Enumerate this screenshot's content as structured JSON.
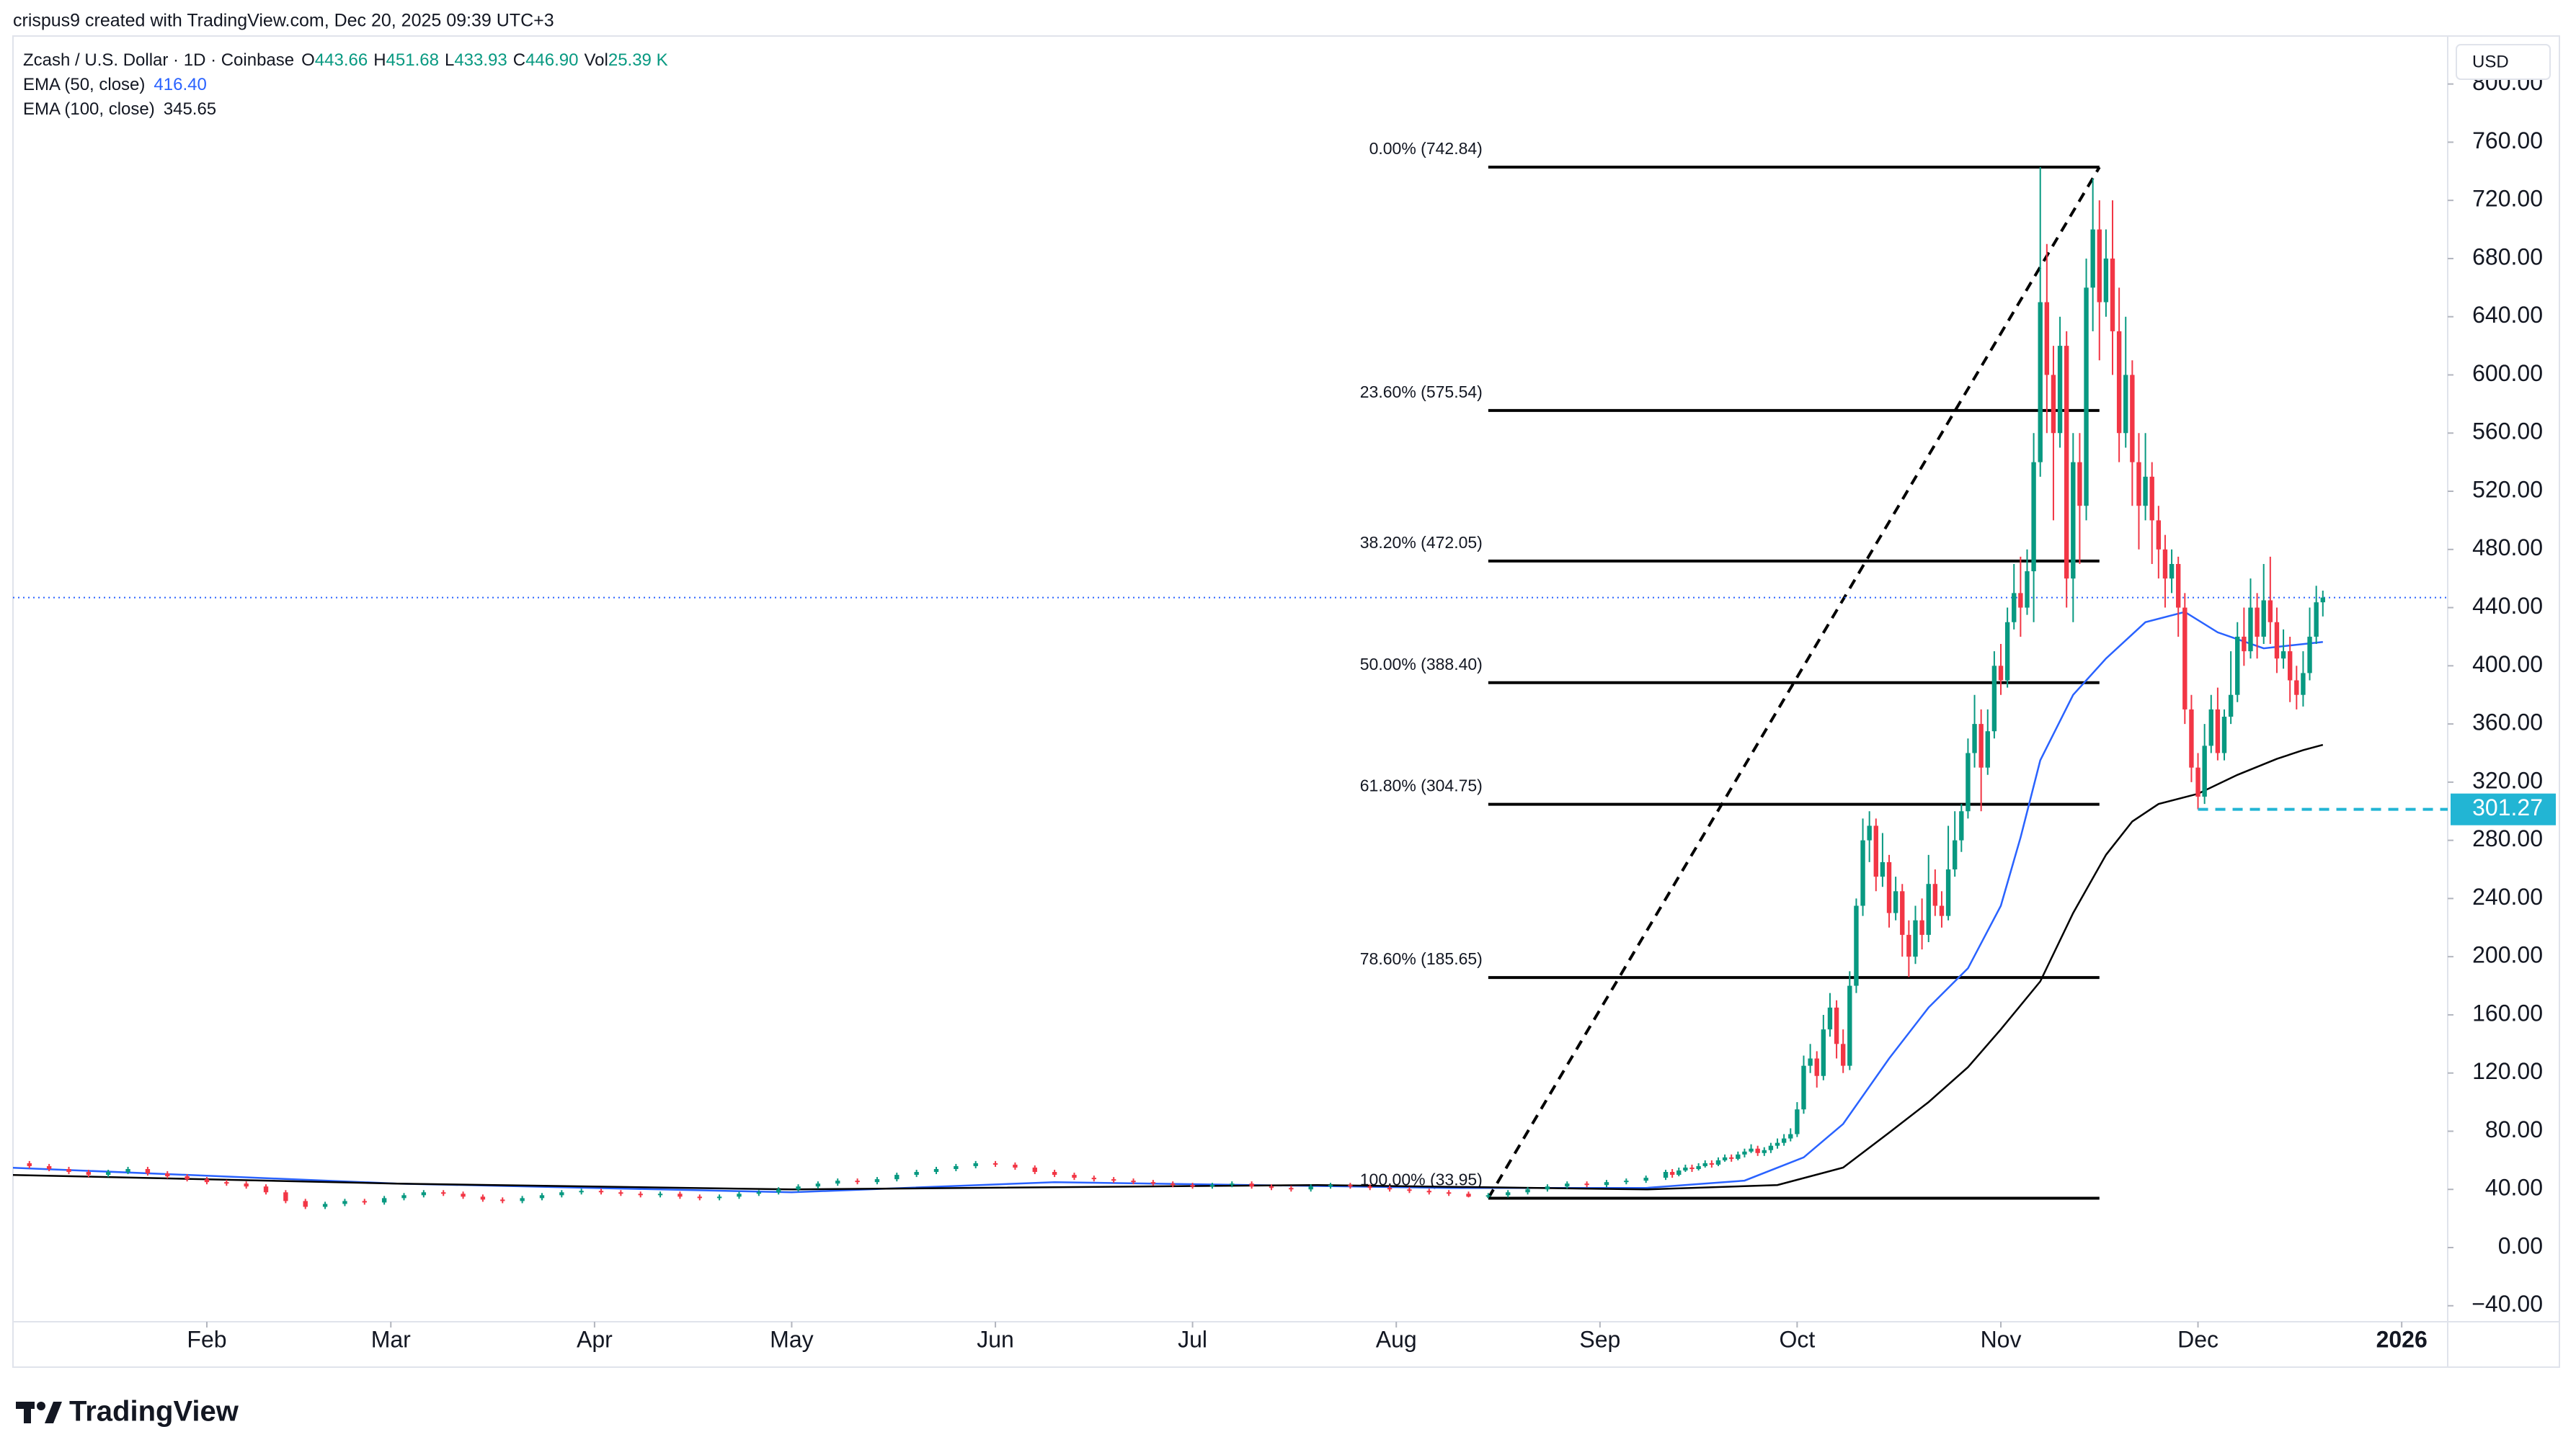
{
  "header": {
    "credit": "crispus9 created with TradingView.com, Dec 20, 2025 09:39 UTC+3"
  },
  "footer": {
    "brand": "TradingView"
  },
  "chart_data": {
    "type": "candlestick",
    "legend": {
      "symbol": "Zcash / U.S. Dollar · 1D · Coinbase",
      "ohlc": [
        {
          "label": "O",
          "text": "443.66"
        },
        {
          "label": "H",
          "text": "451.68"
        },
        {
          "label": "L",
          "text": "433.93"
        },
        {
          "label": "C",
          "text": "446.90"
        },
        {
          "label": "Vol",
          "text": "25.39 K"
        }
      ]
    },
    "currency": "USD",
    "up_color": "#089981",
    "down_color": "#f23645",
    "x": [
      1,
      4,
      7,
      10,
      13,
      16,
      19,
      22,
      25,
      28,
      31,
      34,
      37,
      40,
      43,
      46,
      49,
      52,
      55,
      58,
      61,
      64,
      67,
      70,
      73,
      76,
      79,
      82,
      85,
      88,
      91,
      94,
      97,
      100,
      103,
      106,
      109,
      112,
      115,
      118,
      121,
      124,
      127,
      130,
      133,
      136,
      139,
      142,
      145,
      148,
      151,
      154,
      157,
      160,
      163,
      166,
      169,
      172,
      175,
      178,
      181,
      184,
      187,
      190,
      193,
      196,
      199,
      202,
      205,
      208,
      211,
      214,
      217,
      220,
      223,
      226,
      229,
      232,
      235,
      238,
      241,
      244,
      247,
      250,
      253,
      254,
      255,
      256,
      257,
      258,
      259,
      260,
      261,
      262,
      263,
      264,
      265,
      266,
      267,
      268,
      269,
      270,
      271,
      272,
      273,
      274,
      275,
      276,
      277,
      278,
      279,
      280,
      281,
      282,
      283,
      284,
      285,
      286,
      287,
      288,
      289,
      290,
      291,
      292,
      293,
      294,
      295,
      296,
      297,
      298,
      299,
      300,
      301,
      302,
      303,
      304,
      305,
      306,
      307,
      308,
      309,
      310,
      311,
      312,
      313,
      314,
      315,
      316,
      317,
      318,
      319,
      320,
      321,
      322,
      323,
      324,
      325,
      326,
      327,
      328,
      329,
      330,
      331,
      332,
      333,
      334,
      335,
      336,
      337,
      338,
      339,
      340,
      341,
      342,
      343,
      344,
      345,
      346,
      347,
      348,
      349,
      350,
      351,
      352,
      353
    ],
    "open": [
      60,
      58,
      56,
      54,
      52,
      50,
      52,
      54,
      51,
      49,
      47,
      45,
      44,
      42,
      38,
      32,
      28,
      30,
      32,
      31,
      34,
      36,
      38,
      37,
      35,
      33,
      32,
      34,
      36,
      38,
      39,
      38,
      37,
      36,
      37,
      35,
      34,
      35,
      37,
      38,
      40,
      42,
      44,
      46,
      45,
      47,
      50,
      52,
      54,
      56,
      58,
      57,
      55,
      52,
      50,
      48,
      47,
      46,
      45,
      44,
      43,
      42,
      43,
      44,
      42,
      41,
      40,
      42,
      43,
      42,
      41,
      40,
      39,
      38,
      37,
      35,
      36,
      38,
      40,
      42,
      44,
      43,
      45,
      46,
      48,
      52,
      50,
      53,
      55,
      54,
      56,
      58,
      57,
      60,
      62,
      61,
      64,
      66,
      68,
      65,
      67,
      70,
      72,
      75,
      78,
      95,
      125,
      130,
      118,
      150,
      165,
      140,
      125,
      180,
      235,
      280,
      290,
      255,
      265,
      230,
      245,
      215,
      200,
      225,
      215,
      250,
      235,
      228,
      260,
      280,
      300,
      340,
      360,
      330,
      355,
      400,
      390,
      430,
      450,
      440,
      465,
      540,
      650,
      600,
      560,
      620,
      460,
      540,
      510,
      660,
      700,
      650,
      680,
      630,
      560,
      600,
      540,
      510,
      530,
      500,
      480,
      460,
      470,
      440,
      370,
      330,
      310,
      345,
      370,
      340,
      365,
      380,
      420,
      410,
      440,
      420,
      445,
      430,
      405,
      410,
      390,
      380,
      395,
      420,
      443.66
    ],
    "high": [
      61.5,
      59.5,
      57.5,
      55.5,
      53.5,
      53.5,
      55.5,
      55.5,
      52.5,
      50.5,
      48.5,
      46.5,
      45.5,
      43.5,
      39.5,
      33.5,
      31.5,
      33.5,
      33.5,
      35.5,
      37.5,
      39.5,
      39.5,
      38.5,
      36.5,
      34.5,
      35.5,
      37.5,
      39.5,
      40.5,
      40.5,
      39.5,
      38.5,
      38.5,
      38.5,
      36.5,
      36.5,
      38.5,
      39.5,
      41.5,
      43.5,
      45.5,
      47.5,
      47.5,
      48.5,
      51.5,
      53.5,
      55.5,
      57.5,
      59.5,
      59.5,
      58.5,
      56.5,
      53.5,
      51.5,
      49.5,
      48.5,
      47.5,
      46.5,
      45.5,
      44.5,
      44.5,
      45.5,
      45.5,
      43.5,
      42.5,
      43.5,
      44.5,
      44.5,
      43.5,
      42.5,
      41.5,
      40.5,
      39.5,
      38.5,
      37.5,
      39.5,
      41.5,
      43.5,
      45.5,
      45.5,
      46.5,
      47.5,
      49.5,
      53.5,
      54,
      55,
      57,
      57,
      58,
      60,
      60,
      62,
      64,
      64,
      66,
      68,
      71,
      70,
      69,
      72,
      75,
      78,
      82,
      100,
      132,
      140,
      135,
      160,
      175,
      170,
      150,
      190,
      240,
      295,
      300,
      295,
      285,
      270,
      255,
      250,
      225,
      235,
      240,
      270,
      260,
      245,
      290,
      300,
      305,
      350,
      380,
      370,
      370,
      410,
      415,
      440,
      470,
      475,
      480,
      560,
      742.84,
      690,
      620,
      640,
      630,
      560,
      560,
      680,
      735,
      720,
      700,
      720,
      660,
      640,
      610,
      560,
      560,
      540,
      510,
      490,
      480,
      475,
      450,
      380,
      340,
      360,
      380,
      385,
      370,
      410,
      430,
      440,
      460,
      450,
      470,
      475,
      440,
      425,
      420,
      400,
      410,
      440,
      455,
      451.68
    ],
    "low": [
      56.5,
      54.5,
      52.5,
      50.5,
      48.5,
      48.5,
      50.5,
      49.5,
      47.5,
      45.5,
      43.5,
      42.5,
      40.5,
      36.5,
      30.5,
      26.5,
      26.5,
      28.5,
      29.5,
      29.5,
      32.5,
      34.5,
      35.5,
      33.5,
      31.5,
      30.5,
      30.5,
      32.5,
      34.5,
      36.5,
      36.5,
      35.5,
      34.5,
      34.5,
      33.5,
      32.5,
      32.5,
      33.5,
      35.5,
      36.5,
      38.5,
      40.5,
      42.5,
      43.5,
      43.5,
      45.5,
      48.5,
      50.5,
      52.5,
      54.5,
      55.5,
      53.5,
      50.5,
      48.5,
      46.5,
      45.5,
      44.5,
      43.5,
      42.5,
      41.5,
      40.5,
      40.5,
      41.5,
      40.5,
      39.5,
      38.5,
      38.5,
      40.5,
      40.5,
      39.5,
      38.5,
      37.5,
      36.5,
      35.5,
      34.5,
      33.95,
      34.5,
      36.5,
      38.5,
      40.5,
      41.5,
      41.5,
      43.5,
      44.5,
      46.5,
      48,
      49,
      52,
      52,
      53,
      55,
      55,
      56,
      59,
      59,
      60,
      62,
      65,
      63,
      63,
      65,
      68,
      70,
      73,
      76,
      92,
      120,
      110,
      115,
      145,
      130,
      120,
      122,
      175,
      228,
      265,
      245,
      248,
      220,
      225,
      200,
      186,
      195,
      205,
      210,
      228,
      220,
      225,
      255,
      272,
      295,
      330,
      300,
      325,
      350,
      380,
      385,
      425,
      420,
      435,
      430,
      530,
      560,
      500,
      550,
      440,
      430,
      470,
      500,
      630,
      610,
      640,
      600,
      540,
      550,
      510,
      480,
      500,
      470,
      460,
      440,
      450,
      420,
      360,
      320,
      301.27,
      305,
      340,
      335,
      335,
      360,
      375,
      400,
      405,
      405,
      415,
      415,
      395,
      398,
      375,
      370,
      372,
      390,
      415,
      433.93
    ],
    "close": [
      58,
      56,
      54,
      52,
      50,
      52,
      54,
      51,
      49,
      47,
      45,
      44,
      42,
      38,
      32,
      28,
      30,
      32,
      31,
      34,
      36,
      38,
      37,
      35,
      33,
      32,
      34,
      36,
      38,
      39,
      38,
      37,
      36,
      37,
      35,
      34,
      35,
      37,
      38,
      40,
      42,
      44,
      46,
      45,
      47,
      50,
      52,
      54,
      56,
      58,
      57,
      55,
      52,
      50,
      48,
      47,
      46,
      45,
      44,
      43,
      42,
      43,
      44,
      42,
      41,
      40,
      42,
      43,
      42,
      41,
      40,
      39,
      38,
      37,
      35,
      36,
      38,
      40,
      42,
      44,
      43,
      45,
      46,
      48,
      52,
      50,
      53,
      55,
      54,
      56,
      58,
      57,
      60,
      62,
      61,
      64,
      66,
      68,
      65,
      67,
      70,
      72,
      75,
      78,
      95,
      125,
      130,
      118,
      150,
      165,
      140,
      125,
      180,
      235,
      280,
      290,
      255,
      265,
      230,
      245,
      215,
      200,
      225,
      215,
      250,
      235,
      228,
      260,
      280,
      300,
      340,
      360,
      330,
      355,
      400,
      390,
      430,
      450,
      440,
      465,
      540,
      650,
      600,
      560,
      620,
      460,
      540,
      510,
      660,
      700,
      650,
      680,
      630,
      560,
      600,
      540,
      510,
      530,
      500,
      480,
      460,
      470,
      440,
      370,
      330,
      310,
      345,
      370,
      340,
      365,
      380,
      420,
      410,
      440,
      420,
      445,
      430,
      405,
      410,
      390,
      380,
      395,
      420,
      443.66,
      446.9
    ],
    "lines": [
      {
        "name": "EMA (50, close)",
        "last": "416.40",
        "color": "#2962ff",
        "label_color": "#2962ff",
        "x": [
          1,
          60,
          120,
          160,
          220,
          250,
          265,
          274,
          280,
          287,
          293,
          299,
          304,
          307,
          310,
          315,
          320,
          326,
          332,
          337,
          344,
          348,
          353
        ],
        "values": [
          55,
          44,
          38,
          45,
          41,
          41,
          46,
          62,
          85,
          130,
          165,
          192,
          235,
          282,
          335,
          380,
          405,
          430,
          437,
          423,
          412,
          414,
          416.4
        ]
      },
      {
        "name": "EMA (100, close)",
        "last": "345.65",
        "color": "#000000",
        "label_color": "#131722",
        "x": [
          1,
          60,
          120,
          200,
          250,
          270,
          280,
          287,
          293,
          299,
          304,
          310,
          315,
          320,
          324,
          328,
          334,
          340,
          346,
          350,
          353
        ],
        "values": [
          50,
          44,
          40,
          43,
          40,
          43,
          55,
          79,
          100,
          124,
          150,
          183,
          230,
          270,
          293,
          305,
          312,
          325,
          336,
          342,
          345.65
        ]
      }
    ],
    "fib": {
      "x_start": 226,
      "x_end": 319,
      "levels": [
        {
          "label": "0.00% (742.84)",
          "value": 742.84
        },
        {
          "label": "23.60% (575.54)",
          "value": 575.54
        },
        {
          "label": "38.20% (472.05)",
          "value": 472.05
        },
        {
          "label": "50.00% (388.40)",
          "value": 388.4
        },
        {
          "label": "61.80% (304.75)",
          "value": 304.75
        },
        {
          "label": "78.60% (185.65)",
          "value": 185.65
        },
        {
          "label": "100.00% (33.95)",
          "value": 33.95
        }
      ]
    },
    "hline": {
      "value": 301.27,
      "label": "301.27",
      "x_start": 334,
      "color": "#22b5d4"
    },
    "xlim": [
      1.5,
      372
    ],
    "ylim": [
      -51,
      833
    ],
    "xticks": [
      {
        "value": 31,
        "label": "Feb"
      },
      {
        "value": 59,
        "label": "Mar"
      },
      {
        "value": 90,
        "label": "Apr"
      },
      {
        "value": 120,
        "label": "May"
      },
      {
        "value": 151,
        "label": "Jun"
      },
      {
        "value": 181,
        "label": "Jul"
      },
      {
        "value": 212,
        "label": "Aug"
      },
      {
        "value": 243,
        "label": "Sep"
      },
      {
        "value": 273,
        "label": "Oct"
      },
      {
        "value": 304,
        "label": "Nov"
      },
      {
        "value": 334,
        "label": "Dec"
      },
      {
        "value": 365,
        "label": "2026"
      }
    ],
    "yticks": [
      {
        "value": -40,
        "label": "−40.00"
      },
      {
        "value": 0,
        "label": "0.00"
      },
      {
        "value": 40,
        "label": "40.00"
      },
      {
        "value": 80,
        "label": "80.00"
      },
      {
        "value": 120,
        "label": "120.00"
      },
      {
        "value": 160,
        "label": "160.00"
      },
      {
        "value": 200,
        "label": "200.00"
      },
      {
        "value": 240,
        "label": "240.00"
      },
      {
        "value": 280,
        "label": "280.00"
      },
      {
        "value": 320,
        "label": "320.00"
      },
      {
        "value": 360,
        "label": "360.00"
      },
      {
        "value": 400,
        "label": "400.00"
      },
      {
        "value": 440,
        "label": "440.00"
      },
      {
        "value": 480,
        "label": "480.00"
      },
      {
        "value": 520,
        "label": "520.00"
      },
      {
        "value": 560,
        "label": "560.00"
      },
      {
        "value": 600,
        "label": "600.00"
      },
      {
        "value": 640,
        "label": "640.00"
      },
      {
        "value": 680,
        "label": "680.00"
      },
      {
        "value": 720,
        "label": "720.00"
      },
      {
        "value": 760,
        "label": "760.00"
      },
      {
        "value": 800,
        "label": "800.00"
      }
    ],
    "grid": false
  }
}
